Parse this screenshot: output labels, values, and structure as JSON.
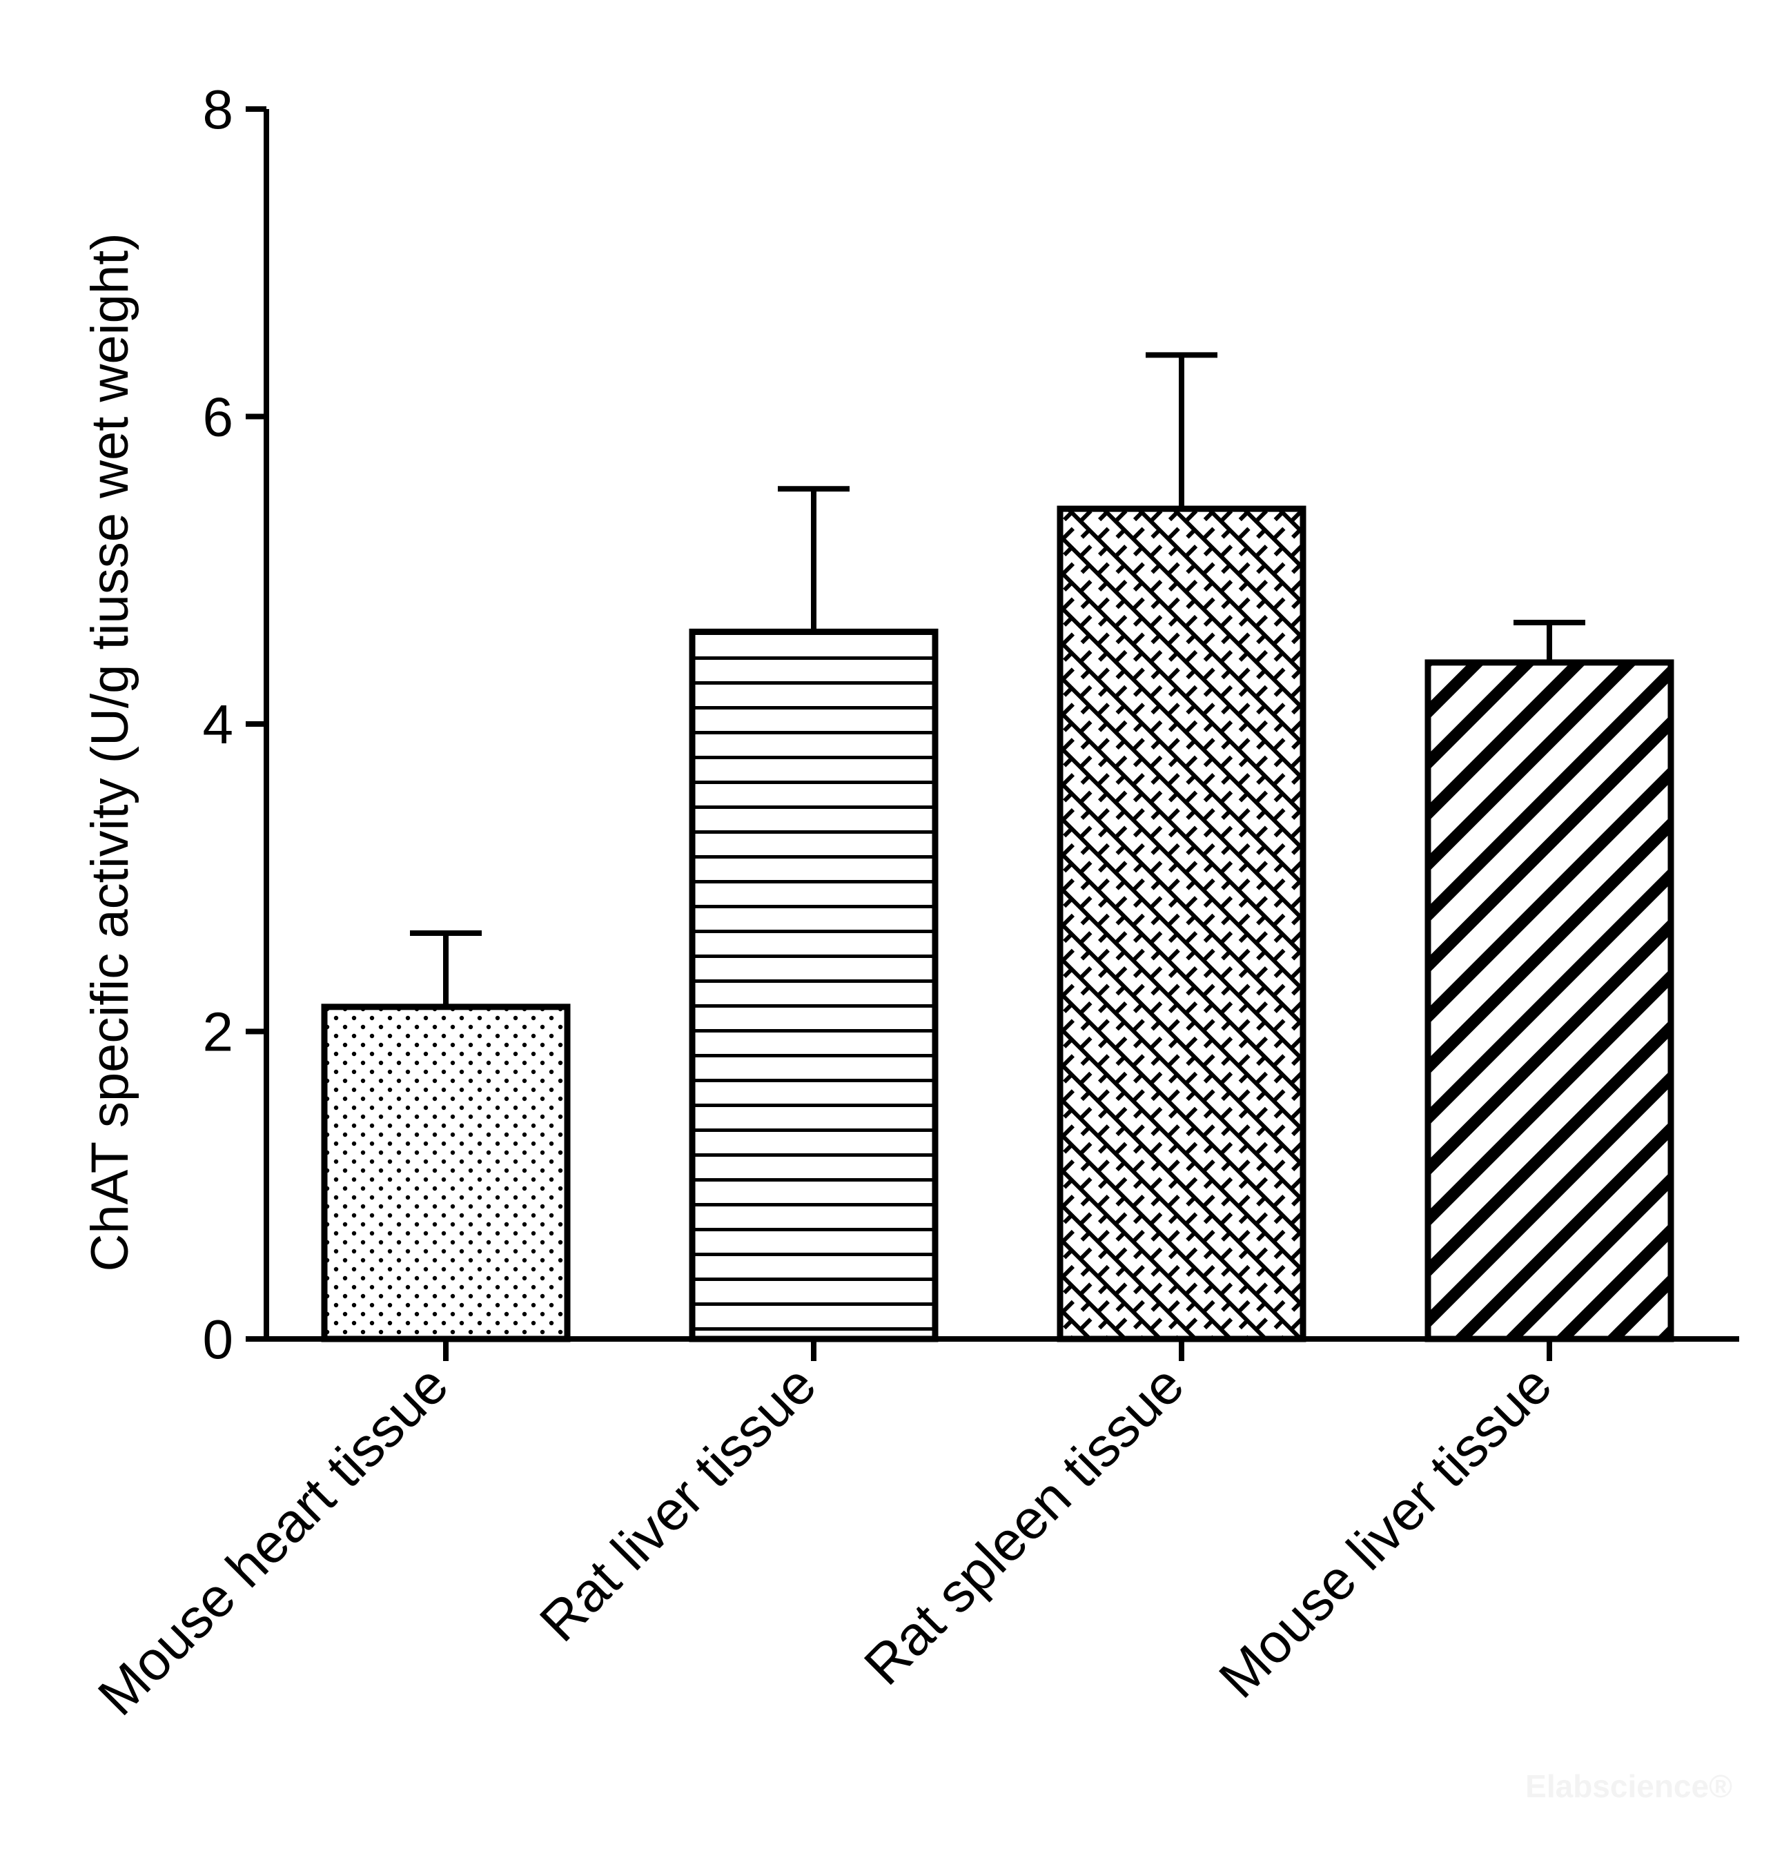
{
  "chart_data": {
    "type": "bar",
    "title": "",
    "xlabel": "",
    "ylabel": "ChAT specific activity (U/g tiusse wet weight)",
    "ylim": [
      0,
      8
    ],
    "yticks": [
      0,
      2,
      4,
      6,
      8
    ],
    "grid": false,
    "categories": [
      "Mouse heart tissue",
      "Rat liver tissue",
      "Rat spleen tissue",
      "Mouse liver tissue"
    ],
    "values": [
      2.16,
      4.6,
      5.4,
      4.4
    ],
    "error_bars": [
      0.48,
      0.93,
      1.0,
      0.26
    ],
    "fill_patterns": [
      "dots",
      "horizontal-lines",
      "crosshatch",
      "diagonal-stripes"
    ]
  },
  "watermark": "Elabscience®"
}
